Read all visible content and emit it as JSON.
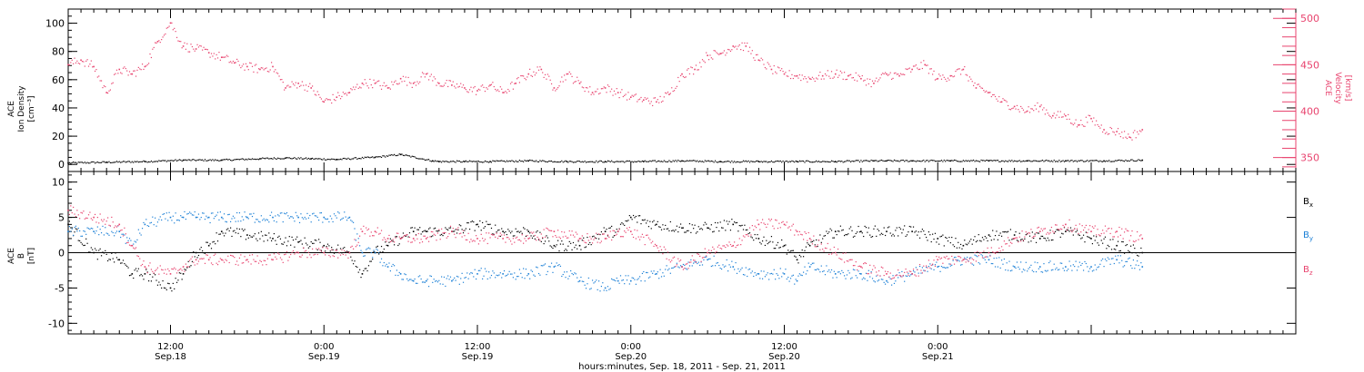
{
  "chart_data": [
    {
      "type": "scatter",
      "panel": "top",
      "left_axis": {
        "label_lines": [
          "ACE",
          "Ion Density",
          "[cm⁻³]"
        ],
        "ylim": [
          -5,
          110
        ],
        "ticks": [
          0,
          20,
          40,
          60,
          80,
          100
        ],
        "tick_labels": [
          "0",
          "20",
          "40",
          "60",
          "80",
          "100"
        ]
      },
      "right_axis": {
        "label_lines": [
          "ACE",
          "Velocity",
          "[km/s]"
        ],
        "ylim": [
          335,
          510
        ],
        "ticks": [
          350,
          400,
          450,
          500
        ],
        "tick_labels": [
          "350",
          "400",
          "450",
          "500"
        ]
      },
      "series": [
        {
          "color": "#000000",
          "axis": "left",
          "x": [
            0,
            3,
            6,
            9,
            12,
            15,
            17,
            19,
            21,
            24,
            26,
            28.5,
            29,
            31,
            33,
            36,
            39,
            42,
            45,
            48,
            51,
            54,
            57,
            60,
            63,
            64,
            66,
            69,
            72,
            75,
            78,
            81,
            84
          ],
          "y": [
            1,
            1.5,
            2,
            3,
            3,
            4,
            4.5,
            4,
            3.5,
            5,
            7,
            2.5,
            2,
            2,
            2,
            2.5,
            2,
            2,
            2,
            2.5,
            2,
            2,
            2,
            2,
            2.5,
            2.5,
            2.5,
            2.5,
            2.5,
            2.5,
            2.5,
            2.5,
            3
          ]
        },
        {
          "color": "#e8436e",
          "axis": "right",
          "x": [
            0,
            1,
            2,
            3,
            4,
            5,
            6,
            7,
            8,
            9,
            10,
            11,
            12,
            13,
            14,
            15,
            16,
            17,
            18,
            19,
            20,
            21,
            22,
            23,
            24,
            25,
            26,
            27,
            28,
            29,
            30,
            31,
            32,
            33,
            34,
            35,
            36,
            37,
            38,
            39,
            40,
            41,
            42,
            43,
            44,
            45,
            46,
            47,
            48,
            49,
            50,
            51,
            52,
            53,
            54,
            55,
            56,
            57,
            58,
            59,
            60,
            61,
            62,
            63,
            64,
            65,
            66,
            67,
            68,
            69,
            70,
            71,
            72,
            73,
            74,
            75,
            76,
            77,
            78,
            79,
            80,
            81,
            82,
            83,
            84
          ],
          "y": [
            450,
            455,
            448,
            420,
            445,
            440,
            448,
            475,
            495,
            470,
            467,
            463,
            458,
            452,
            448,
            445,
            448,
            425,
            430,
            425,
            410,
            415,
            420,
            430,
            430,
            425,
            435,
            430,
            440,
            430,
            428,
            425,
            422,
            428,
            420,
            430,
            440,
            445,
            425,
            440,
            430,
            420,
            425,
            420,
            415,
            412,
            410,
            418,
            440,
            445,
            460,
            462,
            470,
            470,
            455,
            445,
            440,
            438,
            435,
            438,
            440,
            438,
            435,
            430,
            440,
            438,
            445,
            450,
            435,
            438,
            445,
            425,
            420,
            410,
            405,
            400,
            405,
            395,
            395,
            385,
            392,
            380,
            378,
            372,
            380
          ]
        }
      ]
    },
    {
      "type": "scatter",
      "panel": "bottom",
      "left_axis": {
        "label_lines": [
          "ACE",
          "B",
          "[nT]"
        ],
        "ylim": [
          -11.5,
          11.5
        ],
        "ticks": [
          -10,
          -5,
          0,
          5,
          10
        ],
        "tick_labels": [
          "-10",
          "-5",
          "0",
          "5",
          "10"
        ]
      },
      "zero_line": true,
      "legend_position": "right",
      "series": [
        {
          "name": "Bx",
          "color": "#000000",
          "x": [
            0,
            2,
            4,
            5,
            6,
            8,
            9,
            10,
            11,
            12,
            14,
            16,
            18,
            20,
            22,
            23,
            24,
            25,
            26,
            27,
            28,
            30,
            32,
            34,
            36,
            38,
            40,
            42,
            43,
            44,
            46,
            48,
            50,
            52,
            54,
            56,
            57,
            58,
            60,
            62,
            64,
            66,
            68,
            70,
            72,
            74,
            76,
            78,
            80,
            82,
            84
          ],
          "y": [
            4,
            0,
            -1,
            -3,
            -3,
            -5,
            -3,
            0,
            1,
            3,
            2.5,
            2,
            1.5,
            1,
            0,
            -3,
            0,
            1,
            2,
            3,
            3,
            3,
            4,
            3,
            3,
            1,
            1,
            3,
            3,
            5,
            4,
            3.5,
            3.5,
            4,
            2,
            1,
            -1,
            1,
            3,
            3,
            3,
            3,
            2,
            1,
            2.5,
            2.5,
            2,
            3,
            2,
            1,
            0
          ]
        },
        {
          "name": "By",
          "color": "#1a7fd6",
          "x": [
            0,
            2,
            4,
            5,
            6,
            8,
            9,
            10,
            11,
            12,
            14,
            16,
            18,
            20,
            22,
            23,
            24,
            25,
            26,
            27,
            28,
            30,
            32,
            34,
            36,
            38,
            40,
            42,
            43,
            44,
            46,
            48,
            50,
            52,
            54,
            56,
            57,
            58,
            60,
            62,
            64,
            66,
            68,
            70,
            72,
            74,
            76,
            78,
            80,
            82,
            84
          ],
          "y": [
            3,
            3,
            3,
            1,
            4,
            5,
            5,
            5,
            5,
            5,
            5,
            5,
            5,
            5,
            5,
            0,
            0,
            -2,
            -3,
            -4,
            -4,
            -4,
            -3,
            -3,
            -3,
            -2,
            -4,
            -5,
            -4,
            -4,
            -3,
            -2,
            -1,
            -2,
            -3,
            -3,
            -4,
            -2,
            -3,
            -3,
            -4,
            -3,
            -2,
            -1,
            -1,
            -2,
            -2,
            -2,
            -2,
            -1,
            -2
          ]
        },
        {
          "name": "Bz",
          "color": "#e8436e",
          "x": [
            0,
            2,
            4,
            5,
            6,
            8,
            9,
            10,
            11,
            12,
            14,
            16,
            18,
            20,
            22,
            23,
            24,
            25,
            26,
            27,
            28,
            30,
            32,
            34,
            36,
            38,
            40,
            42,
            43,
            44,
            46,
            48,
            50,
            52,
            54,
            56,
            57,
            58,
            60,
            62,
            64,
            66,
            68,
            70,
            72,
            74,
            76,
            78,
            80,
            82,
            84
          ],
          "y": [
            6,
            5,
            4,
            1,
            -2,
            -3,
            -2,
            -1,
            -1,
            -1,
            -1,
            -1,
            0,
            0,
            0,
            3,
            3,
            2,
            2,
            2,
            2,
            3,
            2,
            2,
            2,
            3,
            2,
            2,
            3,
            3,
            1,
            -2,
            0,
            1,
            4,
            4,
            3,
            2,
            0,
            -2,
            -3,
            -3,
            -1,
            -1,
            0,
            2,
            3,
            4,
            3,
            3,
            2
          ]
        }
      ],
      "legend": [
        "Bx",
        "By",
        "Bz"
      ]
    }
  ],
  "x_axis": {
    "xlim_hours": [
      0,
      96
    ],
    "major_ticks": [
      8,
      20,
      32,
      44,
      56,
      68,
      80
    ],
    "tick_labels_top": [
      "12:00",
      "0:00",
      "12:00",
      "0:00",
      "12:00",
      "0:00"
    ],
    "tick_labels_bottom": [
      "Sep.18",
      "Sep.19",
      "Sep.19",
      "Sep.20",
      "Sep.20",
      "Sep.21"
    ],
    "labeled_ticks": [
      8,
      20,
      32,
      44,
      56,
      68
    ],
    "title": "hours:minutes, Sep. 18, 2011 - Sep. 21, 2011"
  },
  "colors": {
    "density": "#000000",
    "velocity": "#e8436e",
    "bx": "#000000",
    "by": "#1a7fd6",
    "bz": "#e8436e"
  },
  "legend_labels": {
    "bx": "B",
    "bx_sub": "x",
    "by": "B",
    "by_sub": "y",
    "bz": "B",
    "bz_sub": "z"
  }
}
